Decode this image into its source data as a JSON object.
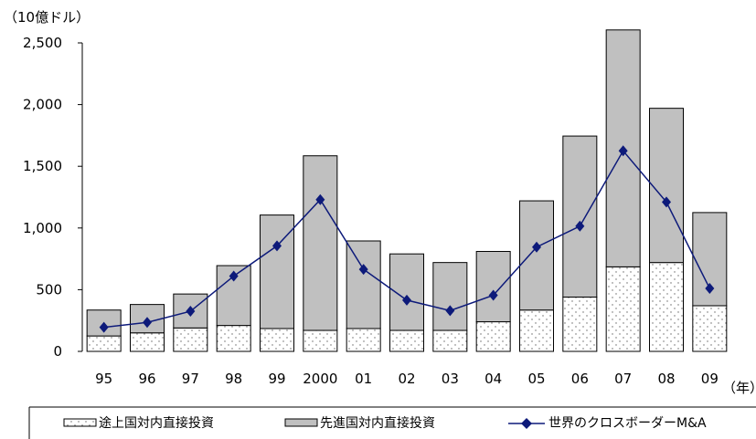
{
  "chart_data": {
    "type": "bar",
    "stacked": true,
    "y_unit_label": "（10億ドル）",
    "x_unit_label": "（年）",
    "categories": [
      "95",
      "96",
      "97",
      "98",
      "99",
      "2000",
      "01",
      "02",
      "03",
      "04",
      "05",
      "06",
      "07",
      "08",
      "09"
    ],
    "ylim": [
      0,
      2500
    ],
    "yticks": [
      0,
      500,
      1000,
      1500,
      2000,
      2500
    ],
    "ytick_labels": [
      "0",
      "500",
      "1,000",
      "1,500",
      "2,000",
      "2,500"
    ],
    "grid": false,
    "legend_position": "bottom",
    "series": [
      {
        "name": "途上国対内直接投資",
        "kind": "bar",
        "fill": "dotted",
        "color": "#ffffff",
        "values": [
          125,
          150,
          190,
          210,
          185,
          170,
          185,
          170,
          170,
          240,
          335,
          440,
          685,
          720,
          370
        ]
      },
      {
        "name": "先進国対内直接投資",
        "kind": "bar",
        "fill": "solid",
        "color": "#c0c0c0",
        "values": [
          210,
          230,
          275,
          485,
          920,
          1415,
          710,
          620,
          550,
          570,
          885,
          1305,
          1920,
          1250,
          755
        ]
      },
      {
        "name": "世界のクロスボーダーM&A",
        "kind": "line",
        "marker": "diamond",
        "color": "#0d1a7a",
        "values": [
          195,
          235,
          325,
          610,
          855,
          1230,
          665,
          415,
          330,
          455,
          845,
          1015,
          1625,
          1210,
          510
        ]
      }
    ]
  }
}
